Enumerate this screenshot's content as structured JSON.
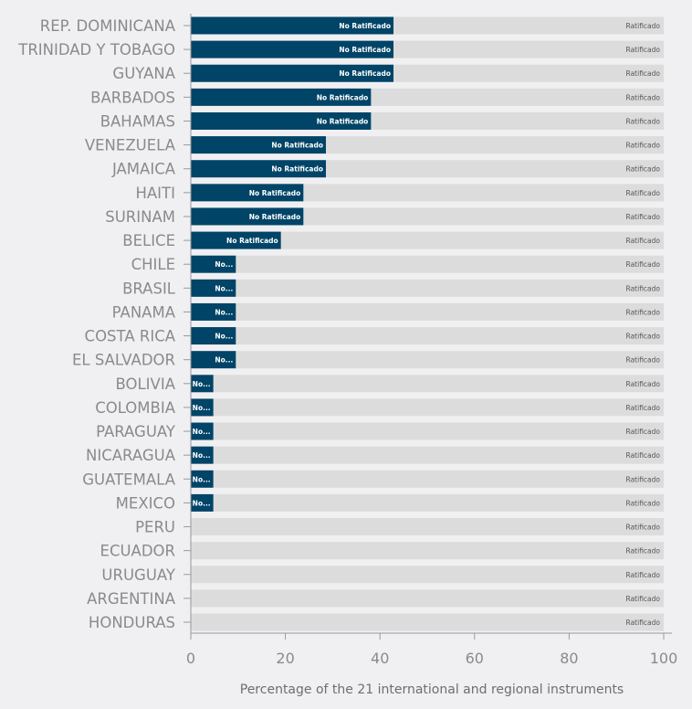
{
  "chart_data": {
    "type": "bar",
    "orientation": "horizontal",
    "stacked": true,
    "title": "",
    "xlabel": "Percentage of the 21 international and regional instruments",
    "ylabel": "",
    "xlim": [
      0,
      100
    ],
    "xticks": [
      0,
      20,
      40,
      60,
      80,
      100
    ],
    "grid": false,
    "categories": [
      "REP. DOMINICANA",
      "TRINIDAD Y TOBAGO",
      "GUYANA",
      "BARBADOS",
      "BAHAMAS",
      "VENEZUELA",
      "JAMAICA",
      "HAITI",
      "SURINAM",
      "BELICE",
      "CHILE",
      "BRASIL",
      "PANAMA",
      "COSTA RICA",
      "EL SALVADOR",
      "BOLIVIA",
      "COLOMBIA",
      "PARAGUAY",
      "NICARAGUA",
      "GUATEMALA",
      "MEXICO",
      "PERU",
      "ECUADOR",
      "URUGUAY",
      "ARGENTINA",
      "HONDURAS"
    ],
    "series": [
      {
        "name": "No Ratificado",
        "color": "#004467",
        "values": [
          42.86,
          42.86,
          42.86,
          38.1,
          38.1,
          28.57,
          28.57,
          23.81,
          23.81,
          19.05,
          9.52,
          9.52,
          9.52,
          9.52,
          9.52,
          4.76,
          4.76,
          4.76,
          4.76,
          4.76,
          4.76,
          0,
          0,
          0,
          0,
          0
        ]
      },
      {
        "name": "Ratificado",
        "color": "#dcdcdc",
        "values": [
          57.14,
          57.14,
          57.14,
          61.9,
          61.9,
          71.43,
          71.43,
          76.19,
          76.19,
          80.95,
          90.48,
          90.48,
          90.48,
          90.48,
          90.48,
          95.24,
          95.24,
          95.24,
          95.24,
          95.24,
          95.24,
          100,
          100,
          100,
          100,
          100
        ]
      }
    ],
    "truncated_label": "No..."
  }
}
